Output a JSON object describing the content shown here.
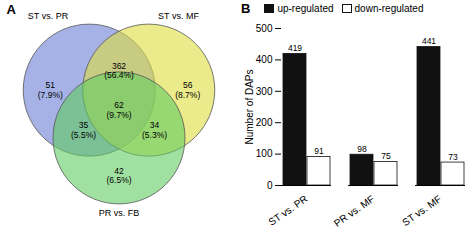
{
  "chart_data": [
    {
      "type": "venn",
      "title": "A",
      "sets": [
        {
          "name": "ST vs. PR",
          "color": "#6B7FD4"
        },
        {
          "name": "ST vs. MF",
          "color": "#DEDE40"
        },
        {
          "name": "PR vs. FB",
          "color": "#60CC60"
        }
      ],
      "regions": [
        {
          "sets": [
            "ST vs. PR"
          ],
          "value": 51,
          "share": 7.9,
          "share_label": "(7.9%)"
        },
        {
          "sets": [
            "ST vs. PR",
            "ST vs. MF"
          ],
          "value": 362,
          "share": 56.4,
          "share_label": "(56.4%)"
        },
        {
          "sets": [
            "ST vs. MF"
          ],
          "value": 56,
          "share": 8.7,
          "share_label": "(8.7%)"
        },
        {
          "sets": [
            "ST vs. PR",
            "ST vs. MF",
            "PR vs. FB"
          ],
          "value": 62,
          "share": 9.7,
          "share_label": "(9.7%)"
        },
        {
          "sets": [
            "ST vs. PR",
            "PR vs. FB"
          ],
          "value": 35,
          "share": 5.5,
          "share_label": "(5.5%)"
        },
        {
          "sets": [
            "ST vs. MF",
            "PR vs. FB"
          ],
          "value": 34,
          "share": 5.3,
          "share_label": "(5.3%)"
        },
        {
          "sets": [
            "PR vs. FB"
          ],
          "value": 42,
          "share": 6.5,
          "share_label": "(6.5%)"
        }
      ]
    },
    {
      "type": "bar",
      "title": "B",
      "categories": [
        "ST vs. PR",
        "PR vs. MF",
        "ST vs. MF"
      ],
      "series": [
        {
          "name": "up-regulated",
          "color": "#111111",
          "values": [
            419,
            98,
            441
          ]
        },
        {
          "name": "down-regulated",
          "color": "#ffffff",
          "values": [
            91,
            75,
            73
          ]
        }
      ],
      "ylabel": "Number of DAPs",
      "ylim": [
        0,
        500
      ],
      "yticks": [
        0,
        100,
        200,
        300,
        400,
        500
      ],
      "grid": false,
      "data_labels": true,
      "legend": "top"
    }
  ]
}
